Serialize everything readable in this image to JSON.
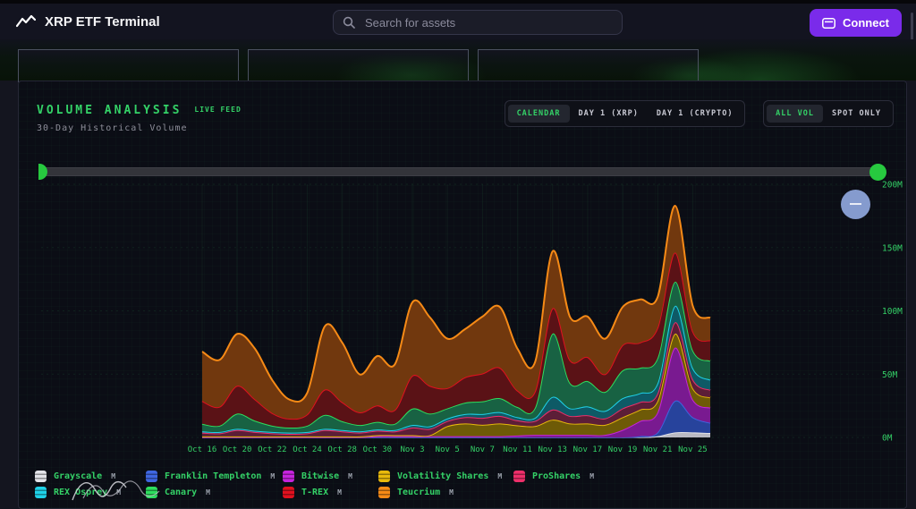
{
  "header": {
    "title": "XRP ETF Terminal",
    "search_placeholder": "Search for assets",
    "connect_label": "Connect"
  },
  "panel": {
    "title": "VOLUME ANALYSIS",
    "live_badge": "LIVE FEED",
    "subtitle": "30-Day Historical Volume",
    "view_buttons": [
      {
        "label": "CALENDAR",
        "active": true
      },
      {
        "label": "DAY 1 (XRP)",
        "active": false
      },
      {
        "label": "DAY 1 (CRYPTO)",
        "active": false
      }
    ],
    "filter_buttons": [
      {
        "label": "ALL VOL",
        "active": true
      },
      {
        "label": "SPOT ONLY",
        "active": false
      }
    ]
  },
  "colors": {
    "accent_green": "#34d167",
    "connect_purple": "#7a2bea",
    "panel_bg": "#0b0d15",
    "grid_green": "rgba(62,207,111,0.09)"
  },
  "chart_data": {
    "type": "area",
    "stacked": true,
    "title": "30-Day Historical Volume",
    "ylim": [
      0,
      200
    ],
    "y_tick_values": [
      0,
      50,
      100,
      150,
      200
    ],
    "y_tick_labels": [
      "0M",
      "50M",
      "100M",
      "150M",
      "200M"
    ],
    "x_tick_every": 2,
    "legend_badge": "M",
    "legend_rows": [
      5,
      4
    ],
    "x": [
      "Oct 16",
      "Oct 17",
      "Oct 20",
      "Oct 21",
      "Oct 22",
      "Oct 23",
      "Oct 24",
      "Oct 27",
      "Oct 28",
      "Oct 29",
      "Oct 30",
      "Oct 31",
      "Nov 3",
      "Nov 4",
      "Nov 5",
      "Nov 6",
      "Nov 7",
      "Nov 10",
      "Nov 11",
      "Nov 12",
      "Nov 13",
      "Nov 14",
      "Nov 17",
      "Nov 18",
      "Nov 19",
      "Nov 20",
      "Nov 21",
      "Nov 24",
      "Nov 25",
      "Nov 26"
    ],
    "series": [
      {
        "name": "Grayscale",
        "line": "#e2e2e8",
        "fill": "#b9b9c2",
        "values": [
          0,
          0,
          0,
          0,
          0,
          0,
          0,
          0,
          0,
          0,
          0,
          0,
          0,
          0,
          0,
          0,
          0,
          0,
          0,
          0,
          0,
          0,
          0,
          0,
          0,
          0,
          1,
          4,
          4,
          3.5
        ]
      },
      {
        "name": "Franklin Templeton",
        "line": "#3f66e0",
        "fill": "#27439c",
        "values": [
          0,
          0,
          0,
          0,
          0,
          0,
          0,
          0,
          0,
          0,
          0,
          0,
          0,
          0,
          0,
          0,
          0,
          0,
          0,
          0,
          0,
          0,
          0,
          0,
          0,
          1,
          3,
          25,
          12,
          8
        ]
      },
      {
        "name": "Bitwise",
        "line": "#c524dd",
        "fill": "#791a90",
        "values": [
          0,
          0,
          0,
          0,
          0,
          0,
          0,
          0,
          0,
          0,
          1,
          1,
          1,
          1,
          1,
          1,
          1,
          1,
          1.5,
          2,
          2,
          2,
          2,
          2,
          6,
          12,
          16,
          42,
          14,
          12
        ]
      },
      {
        "name": "Volatility Shares",
        "line": "#e8b90c",
        "fill": "#6e5a07",
        "values": [
          0.8,
          0.8,
          0.8,
          0.8,
          0.8,
          0.8,
          0.8,
          0.8,
          0.8,
          0.8,
          0.8,
          0.8,
          0.8,
          0.8,
          8,
          10,
          9,
          10,
          8,
          7,
          12,
          9,
          9,
          8,
          10,
          9,
          9,
          11,
          9,
          8
        ]
      },
      {
        "name": "ProShares",
        "line": "#ed2f6a",
        "fill": "#5c1e37",
        "values": [
          3,
          2.5,
          5,
          3.5,
          2.5,
          2,
          2.5,
          5,
          4,
          3,
          3.5,
          3,
          6,
          5,
          4,
          5,
          5.5,
          6,
          4,
          4,
          8,
          6,
          6.5,
          5,
          7,
          6,
          6,
          9,
          7,
          6
        ]
      },
      {
        "name": "REX Osprey",
        "line": "#1fd1e8",
        "fill": "#0e5a66",
        "values": [
          1,
          1,
          1,
          1,
          1,
          1,
          1,
          1,
          1,
          1,
          1,
          1,
          2,
          2,
          2,
          2.5,
          3,
          3,
          2.5,
          2.5,
          10,
          6,
          7,
          6,
          8,
          7,
          8,
          13,
          9,
          8
        ]
      },
      {
        "name": "Canary",
        "line": "#2ddd5e",
        "fill": "#186243",
        "values": [
          6,
          5,
          12,
          8,
          5,
          4,
          5,
          11,
          7,
          5,
          6,
          5,
          13,
          10,
          8,
          9,
          10,
          11,
          8,
          8,
          50,
          20,
          20,
          15,
          22,
          20,
          20,
          19,
          14,
          15
        ]
      },
      {
        "name": "T-REX",
        "line": "#e0111f",
        "fill": "#5a1216",
        "values": [
          18,
          15,
          22,
          17,
          10,
          7,
          9,
          20,
          15,
          10,
          13,
          11,
          26,
          22,
          16,
          20,
          22,
          24,
          13,
          13,
          20,
          18,
          19,
          14,
          20,
          20,
          24,
          23,
          15,
          16
        ]
      },
      {
        "name": "Teucrium",
        "line": "#f68a16",
        "fill": "#71380e",
        "values": [
          39,
          37,
          41,
          40,
          26,
          15,
          17,
          50,
          47,
          30,
          39,
          36,
          58,
          54,
          39,
          38,
          45,
          48,
          33,
          23,
          45,
          34,
          32,
          28,
          30,
          34,
          24,
          37,
          20,
          18
        ]
      }
    ]
  }
}
